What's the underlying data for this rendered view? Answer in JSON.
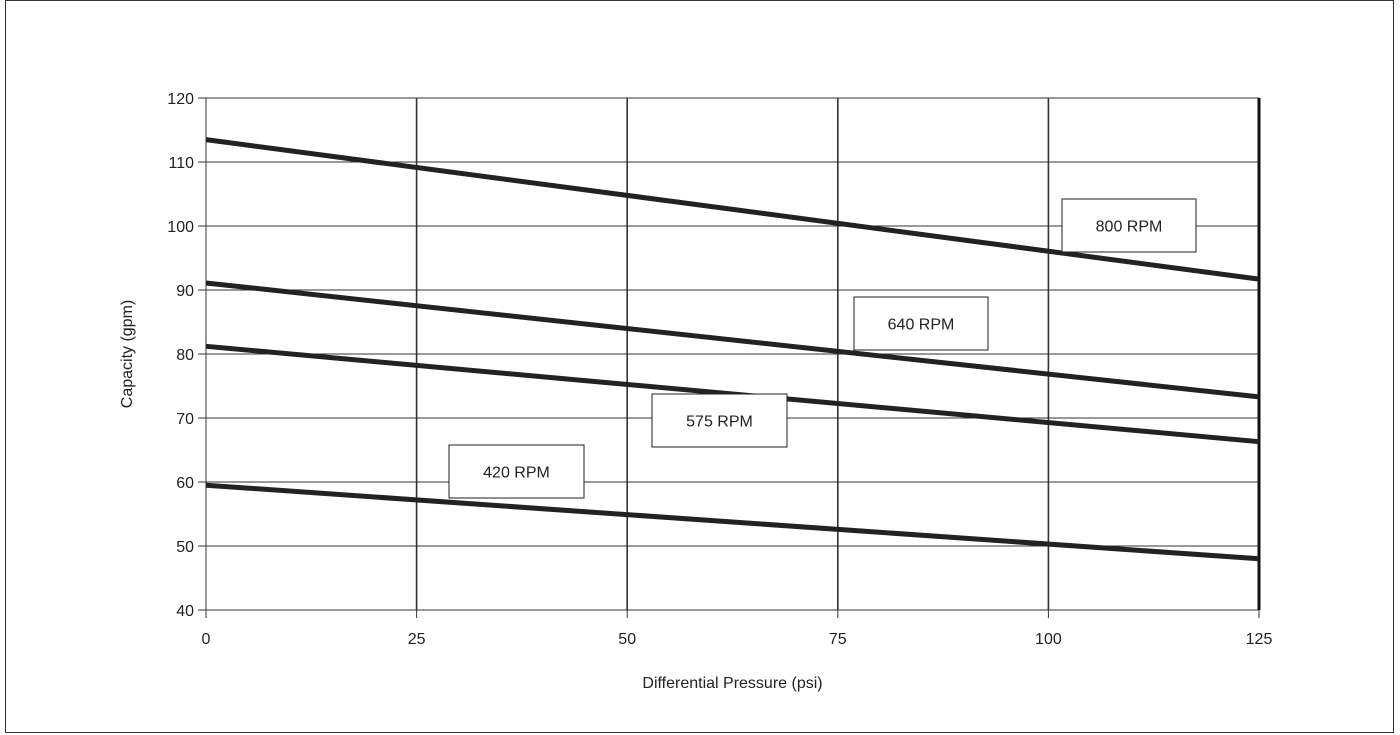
{
  "chart_data": {
    "type": "line",
    "title": "",
    "xlabel": "Differential Pressure (psi)",
    "ylabel": "Capacity (gpm)",
    "xlim": [
      0,
      125
    ],
    "ylim": [
      40,
      120
    ],
    "x_ticks": [
      0,
      25,
      50,
      75,
      100,
      125
    ],
    "y_ticks": [
      40,
      50,
      60,
      70,
      80,
      90,
      100,
      110,
      120
    ],
    "grid": true,
    "legend": "none (inline callout labels)",
    "series": [
      {
        "name": "800 RPM",
        "x": [
          0,
          125
        ],
        "y": [
          113.5,
          91.7
        ]
      },
      {
        "name": "640 RPM",
        "x": [
          0,
          125
        ],
        "y": [
          91.1,
          73.3
        ]
      },
      {
        "name": "575 RPM",
        "x": [
          0,
          125
        ],
        "y": [
          81.2,
          66.3
        ]
      },
      {
        "name": "420 RPM",
        "x": [
          0,
          125
        ],
        "y": [
          59.5,
          48.0
        ]
      }
    ],
    "colors": {
      "lines": "#222222",
      "grid": "#333333"
    }
  }
}
